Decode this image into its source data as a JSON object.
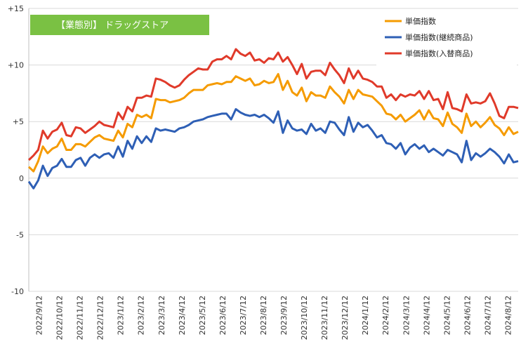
{
  "chart_data": {
    "type": "line",
    "title": "【業態別】 ドラッグストア",
    "title_box_color": "#7ac143",
    "ylim": [
      -10,
      15
    ],
    "yticks": [
      "+15",
      "+10",
      "+5",
      "0",
      "-5",
      "-10"
    ],
    "ytick_values": [
      15,
      10,
      5,
      0,
      -5,
      -10
    ],
    "grid": "horizontal",
    "legend_position": "top-right",
    "x_tick_labels": [
      "2022/9/12",
      "2022/10/12",
      "2022/11/12",
      "2022/12/12",
      "2023/1/12",
      "2023/2/12",
      "2023/3/12",
      "2023/4/12",
      "2023/5/12",
      "2023/6/12",
      "2023/7/12",
      "2023/8/12",
      "2023/9/12",
      "2023/10/12",
      "2023/11/12",
      "2023/12/12",
      "2024/1/12",
      "2024/2/12",
      "2024/3/12",
      "2024/4/12",
      "2024/5/12",
      "2024/6/12",
      "2024/7/12",
      "2024/8/12"
    ],
    "series": [
      {
        "name": "単価指数",
        "color": "#f59b00",
        "values": [
          1.0,
          0.6,
          1.5,
          2.8,
          2.2,
          2.6,
          2.8,
          3.5,
          2.5,
          2.5,
          3.0,
          3.0,
          2.8,
          3.2,
          3.6,
          3.8,
          3.5,
          3.4,
          3.3,
          4.2,
          3.6,
          4.8,
          4.5,
          5.6,
          5.4,
          5.6,
          5.3,
          7.0,
          6.9,
          6.9,
          6.7,
          6.8,
          6.9,
          7.1,
          7.5,
          7.8,
          7.8,
          7.8,
          8.2,
          8.3,
          8.4,
          8.3,
          8.5,
          8.5,
          9.0,
          8.8,
          8.6,
          8.8,
          8.2,
          8.3,
          8.6,
          8.4,
          8.5,
          9.2,
          7.8,
          8.6,
          7.6,
          7.3,
          8.0,
          6.8,
          7.6,
          7.3,
          7.3,
          7.1,
          8.1,
          7.6,
          7.2,
          6.6,
          7.8,
          7.0,
          7.8,
          7.4,
          7.3,
          7.2,
          6.8,
          6.4,
          5.7,
          5.6,
          5.2,
          5.6,
          5.0,
          5.3,
          5.6,
          6.0,
          5.2,
          6.0,
          5.3,
          5.2,
          4.6,
          5.8,
          4.8,
          4.5,
          4.0,
          5.7,
          4.6,
          5.0,
          4.5,
          4.9,
          5.4,
          4.7,
          4.4,
          3.8,
          4.5,
          3.9,
          4.1
        ]
      },
      {
        "name": "単価指数(継続商品)",
        "color": "#2e5fb5",
        "values": [
          -0.3,
          -0.9,
          -0.2,
          1.1,
          0.2,
          0.9,
          1.1,
          1.7,
          1.0,
          1.0,
          1.6,
          1.8,
          1.1,
          1.8,
          2.1,
          1.8,
          2.1,
          2.2,
          1.8,
          2.8,
          1.9,
          3.3,
          2.6,
          3.7,
          3.1,
          3.7,
          3.2,
          4.4,
          4.2,
          4.3,
          4.2,
          4.1,
          4.4,
          4.5,
          4.7,
          5.0,
          5.1,
          5.2,
          5.4,
          5.5,
          5.6,
          5.7,
          5.7,
          5.2,
          6.1,
          5.8,
          5.6,
          5.5,
          5.6,
          5.4,
          5.6,
          5.3,
          4.9,
          5.9,
          4.0,
          5.1,
          4.4,
          4.2,
          4.3,
          3.9,
          4.8,
          4.2,
          4.4,
          4.0,
          5.0,
          4.9,
          4.3,
          3.8,
          5.4,
          4.1,
          4.9,
          4.5,
          4.7,
          4.2,
          3.6,
          3.8,
          3.1,
          3.0,
          2.6,
          3.1,
          2.1,
          2.7,
          3.0,
          2.6,
          2.9,
          2.3,
          2.6,
          2.3,
          2.0,
          2.5,
          2.3,
          2.1,
          1.4,
          3.3,
          1.6,
          2.2,
          1.9,
          2.2,
          2.6,
          2.3,
          1.9,
          1.3,
          2.1,
          1.4,
          1.5
        ]
      },
      {
        "name": "単価指数(入替商品)",
        "color": "#e03a2a",
        "values": [
          1.6,
          2.0,
          2.5,
          4.2,
          3.5,
          4.1,
          4.3,
          4.9,
          3.8,
          3.7,
          4.5,
          4.4,
          4.0,
          4.3,
          4.6,
          5.0,
          4.7,
          4.6,
          4.5,
          5.8,
          5.2,
          6.3,
          5.9,
          7.1,
          7.1,
          7.3,
          7.2,
          8.8,
          8.7,
          8.5,
          8.2,
          8.0,
          8.2,
          8.7,
          9.1,
          9.4,
          9.7,
          9.6,
          9.6,
          10.3,
          10.5,
          10.5,
          10.8,
          10.5,
          11.4,
          11.0,
          10.8,
          11.1,
          10.4,
          10.5,
          10.2,
          10.6,
          10.5,
          11.1,
          10.3,
          10.7,
          10.0,
          9.2,
          10.1,
          8.8,
          9.4,
          9.5,
          9.5,
          9.1,
          10.2,
          9.6,
          9.1,
          8.4,
          9.7,
          8.8,
          9.5,
          8.8,
          8.7,
          8.5,
          8.1,
          8.1,
          7.1,
          7.4,
          6.9,
          7.4,
          7.2,
          7.4,
          7.3,
          7.7,
          7.0,
          7.7,
          6.9,
          7.0,
          6.1,
          7.6,
          6.2,
          6.1,
          5.9,
          7.4,
          6.6,
          6.7,
          6.6,
          6.8,
          7.5,
          6.6,
          5.5,
          5.3,
          6.3,
          6.3,
          6.2
        ]
      }
    ]
  }
}
